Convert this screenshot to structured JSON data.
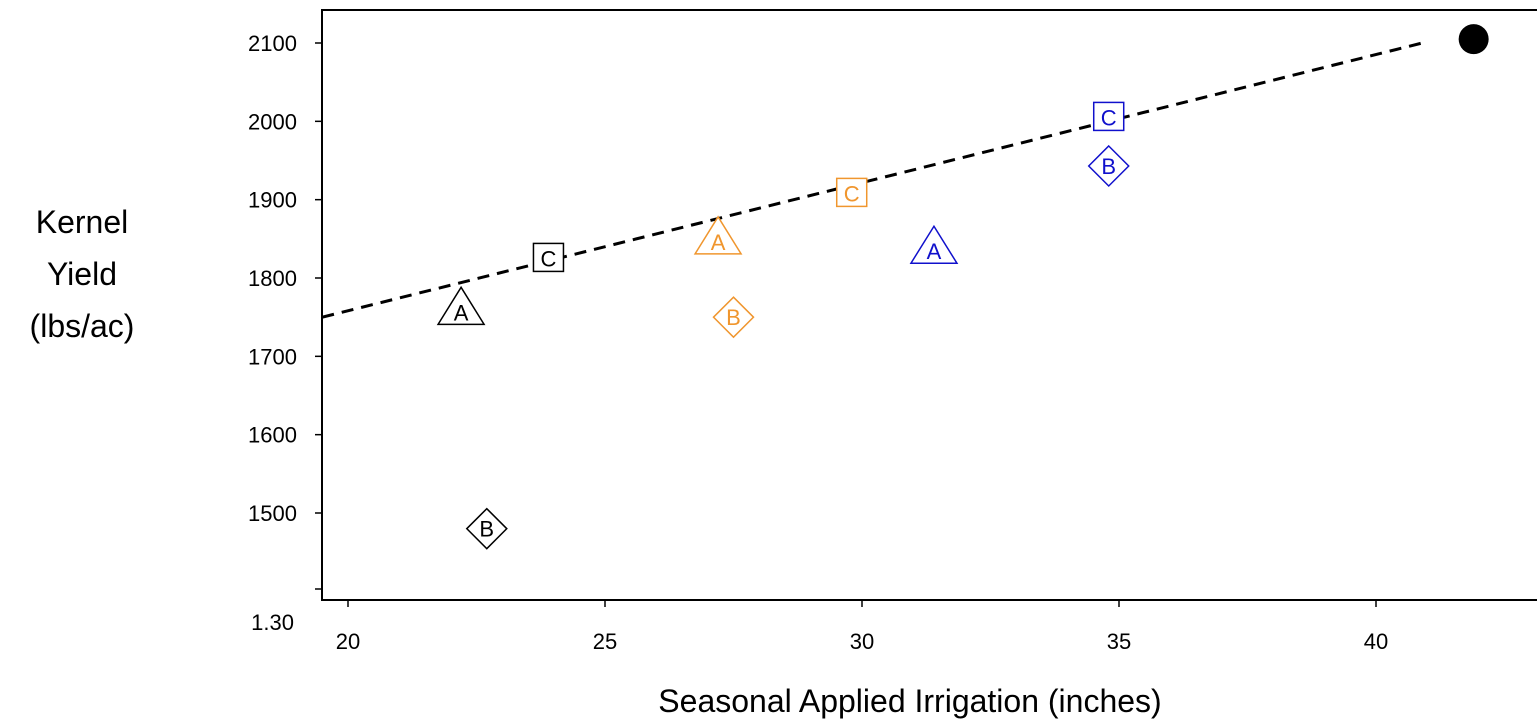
{
  "chart_data": {
    "type": "scatter",
    "title": "",
    "xlabel": "Seasonal Applied Irrigation (inches)",
    "ylabel_lines": [
      "Kernel",
      "Yield",
      "(lbs/ac)"
    ],
    "xlim": [
      19.5,
      43.5
    ],
    "ylim": [
      1400,
      2150
    ],
    "x_ticks": [
      20,
      25,
      30,
      35,
      40
    ],
    "y_ticks": [
      1500,
      1600,
      1700,
      1800,
      1900,
      2000,
      2100
    ],
    "y_tick_labels": [
      "1500",
      "1600",
      "1700",
      "1800",
      "1900",
      "2000",
      "2100"
    ],
    "y_extra_tick_label": "1.30",
    "grid": false,
    "colors": {
      "black": "#000000",
      "orange": "#f0962e",
      "blue": "#1010cc"
    },
    "points": [
      {
        "label": "A",
        "shape": "triangle",
        "color": "black",
        "x": 22.2,
        "y": 1760
      },
      {
        "label": "B",
        "shape": "diamond",
        "color": "black",
        "x": 22.7,
        "y": 1480
      },
      {
        "label": "C",
        "shape": "square",
        "color": "black",
        "x": 23.9,
        "y": 1825
      },
      {
        "label": "A",
        "shape": "triangle",
        "color": "orange",
        "x": 27.2,
        "y": 1850
      },
      {
        "label": "B",
        "shape": "diamond",
        "color": "orange",
        "x": 27.5,
        "y": 1750
      },
      {
        "label": "C",
        "shape": "square",
        "color": "orange",
        "x": 29.8,
        "y": 1908
      },
      {
        "label": "A",
        "shape": "triangle",
        "color": "blue",
        "x": 31.4,
        "y": 1838
      },
      {
        "label": "B",
        "shape": "diamond",
        "color": "blue",
        "x": 34.8,
        "y": 1943
      },
      {
        "label": "C",
        "shape": "square",
        "color": "blue",
        "x": 34.8,
        "y": 2005
      },
      {
        "label": "",
        "shape": "circle",
        "color": "black",
        "x": 41.9,
        "y": 2105
      }
    ],
    "trend_line": {
      "x": [
        19.5,
        40.9
      ],
      "y": [
        1750,
        2100
      ],
      "style": "dashed"
    }
  }
}
